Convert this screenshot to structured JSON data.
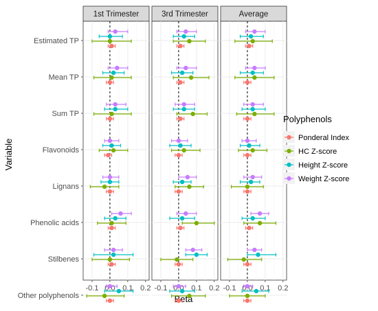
{
  "chart_data": {
    "type": "scatter",
    "subtype": "forest plot (point estimate with confidence interval), faceted",
    "xlabel": "Beta",
    "ylabel": "Variable",
    "xlim": [
      -0.15,
      0.22
    ],
    "x_ticks": [
      "-0.1",
      "0.0",
      "0.1",
      "0.2"
    ],
    "reference_line": {
      "x": 0,
      "style": "dashed"
    },
    "grid": true,
    "legend": {
      "title": "Polyphenols",
      "position": "right"
    },
    "panels": [
      "1st Trimester",
      "3rd Trimester",
      "Average"
    ],
    "variables": [
      "Estimated TP",
      "Mean TP",
      "Sum TP",
      "Flavonoids",
      "Lignans",
      "Phenolic acids",
      "Stilbenes",
      "Other polyphenols"
    ],
    "series": [
      {
        "name": "Weight Z-score",
        "color": "#c77cff",
        "data": {
          "1st Trimester": [
            [
              0.03,
              -0.01,
              0.1
            ],
            [
              0.04,
              -0.01,
              0.1
            ],
            [
              0.03,
              -0.02,
              0.09
            ],
            [
              0.0,
              -0.03,
              0.05
            ],
            [
              0.0,
              -0.04,
              0.05
            ],
            [
              0.06,
              0.01,
              0.12
            ],
            [
              0.02,
              -0.03,
              0.07
            ],
            [
              0.0,
              -0.02,
              0.04
            ]
          ],
          "3rd Trimester": [
            [
              0.04,
              -0.01,
              0.1
            ],
            [
              0.04,
              -0.01,
              0.1
            ],
            [
              0.03,
              -0.02,
              0.09
            ],
            [
              0.0,
              -0.04,
              0.05
            ],
            [
              0.05,
              0.0,
              0.1
            ],
            [
              0.04,
              -0.01,
              0.1
            ],
            [
              0.08,
              0.04,
              0.13
            ],
            [
              0.0,
              -0.03,
              0.04
            ]
          ],
          "Average": [
            [
              0.04,
              -0.01,
              0.1
            ],
            [
              0.04,
              -0.01,
              0.1
            ],
            [
              0.03,
              -0.02,
              0.09
            ],
            [
              0.0,
              -0.03,
              0.05
            ],
            [
              0.03,
              -0.02,
              0.08
            ],
            [
              0.07,
              0.02,
              0.12
            ],
            [
              0.04,
              0.0,
              0.08
            ],
            [
              0.0,
              -0.02,
              0.03
            ]
          ]
        }
      },
      {
        "name": "Height Z-score",
        "color": "#00bfc4",
        "data": {
          "1st Trimester": [
            [
              0.0,
              -0.06,
              0.07
            ],
            [
              0.02,
              -0.04,
              0.08
            ],
            [
              0.03,
              -0.03,
              0.1
            ],
            [
              0.01,
              -0.04,
              0.06
            ],
            [
              0.0,
              -0.05,
              0.05
            ],
            [
              0.03,
              -0.03,
              0.09
            ],
            [
              0.02,
              -0.09,
              0.13
            ],
            [
              0.05,
              -0.03,
              0.13
            ]
          ],
          "3rd Trimester": [
            [
              0.03,
              -0.03,
              0.09
            ],
            [
              0.02,
              -0.04,
              0.08
            ],
            [
              0.03,
              -0.03,
              0.09
            ],
            [
              0.01,
              -0.05,
              0.07
            ],
            [
              0.02,
              -0.03,
              0.07
            ],
            [
              0.02,
              -0.05,
              0.09
            ],
            [
              0.1,
              0.04,
              0.16
            ],
            [
              0.02,
              -0.05,
              0.09
            ]
          ],
          "Average": [
            [
              0.02,
              -0.04,
              0.09
            ],
            [
              0.03,
              -0.04,
              0.09
            ],
            [
              0.03,
              -0.03,
              0.1
            ],
            [
              0.01,
              -0.04,
              0.07
            ],
            [
              0.02,
              -0.04,
              0.07
            ],
            [
              0.03,
              -0.03,
              0.1
            ],
            [
              0.06,
              0.0,
              0.16
            ],
            [
              0.05,
              -0.03,
              0.12
            ]
          ]
        }
      },
      {
        "name": "HC  Z-score",
        "color": "#7cae00",
        "data": {
          "1st Trimester": [
            [
              0.0,
              -0.1,
              0.12
            ],
            [
              0.01,
              -0.09,
              0.12
            ],
            [
              0.01,
              -0.09,
              0.12
            ],
            [
              0.02,
              -0.06,
              0.1
            ],
            [
              -0.03,
              -0.11,
              0.05
            ],
            [
              0.01,
              -0.07,
              0.09
            ],
            [
              0.0,
              -0.1,
              0.11
            ],
            [
              -0.03,
              -0.13,
              0.08
            ]
          ],
          "3rd Trimester": [
            [
              0.06,
              -0.03,
              0.15
            ],
            [
              0.07,
              -0.03,
              0.17
            ],
            [
              0.08,
              -0.01,
              0.16
            ],
            [
              0.03,
              -0.04,
              0.12
            ],
            [
              0.06,
              -0.02,
              0.14
            ],
            [
              0.1,
              0.02,
              0.2
            ],
            [
              -0.01,
              -0.1,
              0.08
            ],
            [
              0.06,
              -0.04,
              0.15
            ]
          ],
          "Average": [
            [
              0.03,
              -0.07,
              0.14
            ],
            [
              0.04,
              -0.07,
              0.15
            ],
            [
              0.04,
              -0.06,
              0.15
            ],
            [
              0.03,
              -0.05,
              0.11
            ],
            [
              0.0,
              -0.09,
              0.09
            ],
            [
              0.07,
              -0.02,
              0.16
            ],
            [
              -0.02,
              -0.11,
              0.08
            ],
            [
              0.0,
              -0.1,
              0.1
            ]
          ]
        }
      },
      {
        "name": "Ponderal Index",
        "color": "#f8766d",
        "data": {
          "1st Trimester": [
            [
              0.01,
              -0.01,
              0.03
            ],
            [
              0.0,
              -0.02,
              0.02
            ],
            [
              0.0,
              -0.02,
              0.02
            ],
            [
              -0.01,
              -0.03,
              0.01
            ],
            [
              0.0,
              -0.02,
              0.02
            ],
            [
              0.01,
              -0.01,
              0.03
            ],
            [
              0.01,
              -0.01,
              0.03
            ],
            [
              0.0,
              -0.02,
              0.02
            ]
          ],
          "3rd Trimester": [
            [
              0.01,
              -0.01,
              0.03
            ],
            [
              0.01,
              -0.01,
              0.03
            ],
            [
              0.01,
              -0.01,
              0.03
            ],
            [
              0.0,
              -0.02,
              0.02
            ],
            [
              0.0,
              -0.02,
              0.02
            ],
            [
              0.01,
              -0.01,
              0.03
            ],
            [
              0.0,
              -0.02,
              0.02
            ],
            [
              0.0,
              -0.02,
              0.02
            ]
          ],
          "Average": [
            [
              0.01,
              -0.01,
              0.03
            ],
            [
              0.0,
              -0.02,
              0.02
            ],
            [
              0.0,
              -0.02,
              0.02
            ],
            [
              0.0,
              -0.02,
              0.02
            ],
            [
              0.0,
              -0.02,
              0.02
            ],
            [
              0.01,
              -0.01,
              0.03
            ],
            [
              0.0,
              -0.02,
              0.02
            ],
            [
              0.0,
              -0.02,
              0.02
            ]
          ]
        }
      }
    ],
    "legend_order": [
      "Ponderal Index",
      "HC  Z-score",
      "Height Z-score",
      "Weight Z-score"
    ]
  }
}
